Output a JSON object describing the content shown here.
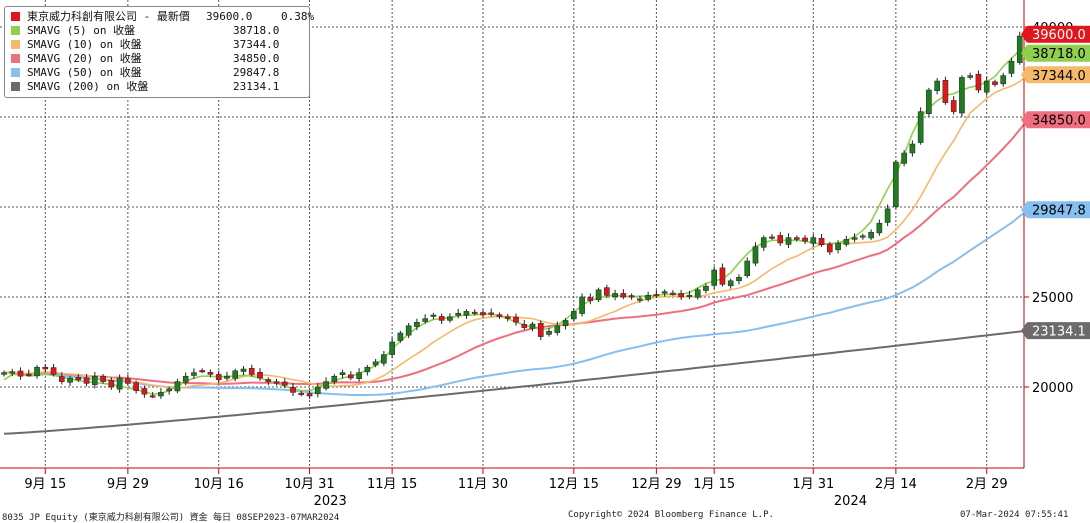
{
  "legend": {
    "title": "東京威力科創有限公司 - 最新價",
    "last_value": "39600.0",
    "change_pct": "0.38%",
    "items": [
      {
        "name": "SMAVG (5)  on 收盤",
        "value": "38718.0",
        "color": "#8fd14f"
      },
      {
        "name": "SMAVG (10)  on 收盤",
        "value": "37344.0",
        "color": "#f5b96b"
      },
      {
        "name": "SMAVG (20)  on 收盤",
        "value": "34850.0",
        "color": "#ef6e80"
      },
      {
        "name": "SMAVG (50)  on 收盤",
        "value": "29847.8",
        "color": "#86bff0"
      },
      {
        "name": "SMAVG (200)  on 收盤",
        "value": "23134.1",
        "color": "#6b6b6b"
      }
    ],
    "price_color": "#e0161e"
  },
  "footer": {
    "left": "8035 JP Equity (東京威力科創有限公司) 資金  每日 08SEP2023-07MAR2024",
    "center": "Copyright© 2024 Bloomberg Finance L.P.",
    "right": "07-Mar-2024 07:55:41"
  },
  "chart_data": {
    "type": "candlestick",
    "y_axis": {
      "side": "right",
      "range": [
        15500,
        41500
      ],
      "ticks": [
        20000,
        25000,
        30000,
        35000,
        40000
      ],
      "tick_labels": [
        "20000",
        "25000",
        "",
        "",
        "40000"
      ]
    },
    "x_axis": {
      "range": [
        0,
        124
      ],
      "ticks": [
        {
          "label": "9月 15",
          "i": 5
        },
        {
          "label": "9月 29",
          "i": 15
        },
        {
          "label": "10月 16",
          "i": 26
        },
        {
          "label": "10月 31",
          "i": 37
        },
        {
          "label": "11月 15",
          "i": 47
        },
        {
          "label": "11月 30",
          "i": 58
        },
        {
          "label": "12月 15",
          "i": 69
        },
        {
          "label": "12月 29",
          "i": 79
        },
        {
          "label": "1月 15",
          "i": 86
        },
        {
          "label": "1月 31",
          "i": 98
        },
        {
          "label": "2月 14",
          "i": 108
        },
        {
          "label": "2月 29",
          "i": 119
        }
      ],
      "year_labels": [
        {
          "label": "2023",
          "i": 39.5
        },
        {
          "label": "2024",
          "i": 102.5
        }
      ]
    },
    "value_tags": [
      {
        "label": "39600.0",
        "value": 39600,
        "bg": "#e0161e",
        "fg": "#ffffff"
      },
      {
        "label": "38718.0",
        "value": 38718,
        "bg": "#8fd14f",
        "fg": "#000000"
      },
      {
        "label": "37344.0",
        "value": 37344,
        "bg": "#f5b96b",
        "fg": "#000000"
      },
      {
        "label": "34850.0",
        "value": 34850,
        "bg": "#ef6e80",
        "fg": "#000000"
      },
      {
        "label": "29847.8",
        "value": 29847.8,
        "bg": "#86bff0",
        "fg": "#000000"
      },
      {
        "label": "23134.1",
        "value": 23134.1,
        "bg": "#6b6b6b",
        "fg": "#ffffff"
      }
    ],
    "closes": [
      20800,
      20850,
      20600,
      20700,
      21100,
      21000,
      20700,
      20300,
      20500,
      20400,
      20200,
      20600,
      20300,
      20000,
      20500,
      20200,
      19800,
      19600,
      19500,
      19700,
      19900,
      20300,
      20600,
      20800,
      20900,
      20700,
      20400,
      20600,
      20900,
      21000,
      20700,
      20500,
      20300,
      20200,
      20100,
      19700,
      19600,
      19500,
      20000,
      20300,
      20600,
      20800,
      20500,
      20800,
      21100,
      21400,
      21800,
      22500,
      23000,
      23400,
      23600,
      23800,
      24000,
      23700,
      23900,
      24100,
      24200,
      24100,
      24000,
      24100,
      23900,
      23800,
      23600,
      23300,
      23500,
      22800,
      23100,
      23400,
      23700,
      24200,
      25000,
      24800,
      25400,
      25100,
      25200,
      25000,
      25000,
      24900,
      25100,
      25100,
      25300,
      25200,
      25000,
      25100,
      25400,
      25600,
      26500,
      25700,
      25900,
      26100,
      27000,
      27800,
      28300,
      28300,
      28000,
      28300,
      28200,
      28100,
      28300,
      27900,
      27500,
      28000,
      28200,
      28300,
      28400,
      28600,
      29100,
      29900,
      32500,
      33000,
      33500,
      35300,
      36500,
      37000,
      35800,
      35300,
      37200,
      37300,
      36500,
      37000,
      36800,
      37300,
      38100,
      39500,
      39600
    ],
    "sma_5": [
      20400,
      20700,
      20700,
      20600,
      20650,
      20700,
      20650,
      20550,
      20450,
      20350,
      20300,
      20250,
      20200,
      20150,
      20050,
      19950,
      19850,
      19750,
      19600,
      19650,
      19800,
      20050,
      20300,
      20500,
      20600,
      20600,
      20550,
      20600,
      20600,
      20650,
      20600,
      20500,
      20350,
      20200,
      20050,
      19900,
      19800,
      19800,
      19950,
      20150,
      20350,
      20500,
      20600,
      20750,
      20950,
      21200,
      21600,
      22100,
      22550,
      22950,
      23300,
      23550,
      23750,
      23800,
      23850,
      23950,
      24000,
      24000,
      24050,
      24050,
      23950,
      23800,
      23600,
      23450,
      23300,
      23200,
      23250,
      23450,
      23750,
      24150,
      24550,
      24800,
      24950,
      25050,
      25100,
      25050,
      25000,
      25050,
      25050,
      25100,
      25150,
      25150,
      25150,
      25250,
      25500,
      25750,
      25900,
      26000,
      26350,
      26900,
      27400,
      27800,
      28000,
      28150,
      28150,
      28150,
      28150,
      28100,
      28000,
      27950,
      27950,
      28000,
      28150,
      28350,
      28700,
      29200,
      30100,
      31000,
      31800,
      32900,
      34100,
      35000,
      35500,
      35900,
      36200,
      36300,
      36500,
      36650,
      36750,
      36950,
      37250,
      37800,
      38250,
      38718
    ]
  }
}
